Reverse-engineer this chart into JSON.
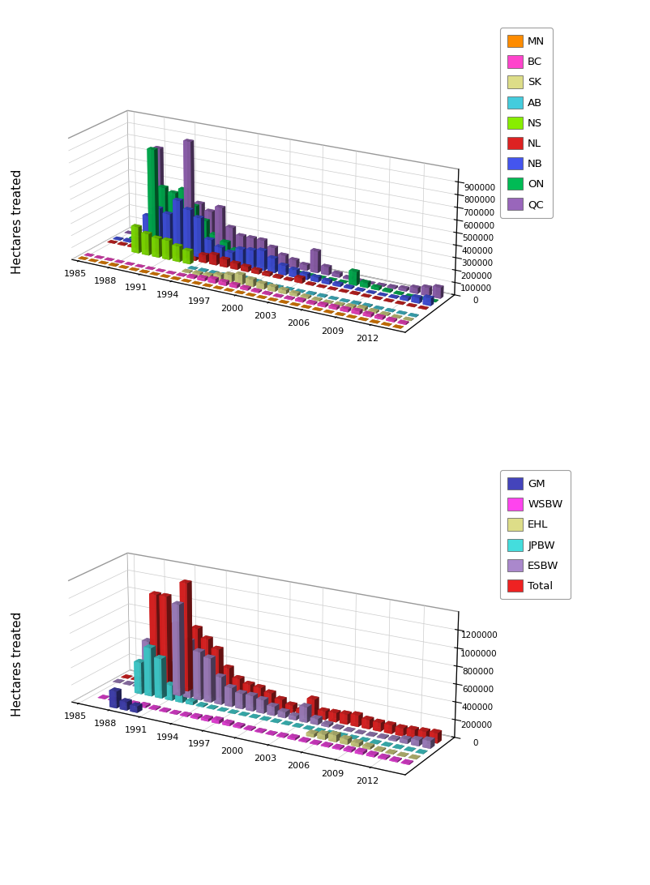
{
  "years": [
    1985,
    1986,
    1987,
    1988,
    1989,
    1990,
    1991,
    1992,
    1993,
    1994,
    1995,
    1996,
    1997,
    1998,
    1999,
    2000,
    2001,
    2002,
    2003,
    2004,
    2005,
    2006,
    2007,
    2008,
    2009,
    2010,
    2011,
    2012,
    2013,
    2014
  ],
  "chart1": {
    "ylabel": "Hectares treated",
    "ylim": [
      0,
      1000000
    ],
    "yticks": [
      0,
      100000,
      200000,
      300000,
      400000,
      500000,
      600000,
      700000,
      800000,
      900000
    ],
    "series_order": [
      "MN",
      "BC",
      "SK",
      "AB",
      "NS",
      "NL",
      "NB",
      "ON",
      "QC"
    ],
    "colors": {
      "MN": "#FF8C00",
      "BC": "#FF44CC",
      "SK": "#DDDD88",
      "AB": "#44CCDD",
      "NS": "#88EE00",
      "NL": "#DD2222",
      "NB": "#4455EE",
      "ON": "#00BB55",
      "QC": "#9966BB"
    },
    "data": {
      "MN": [
        2000,
        2000,
        2000,
        5000,
        3000,
        3000,
        3000,
        2000,
        2000,
        3000,
        2000,
        2000,
        2000,
        2000,
        2000,
        2000,
        2000,
        2000,
        2000,
        2000,
        2000,
        2000,
        2000,
        2000,
        2000,
        2000,
        2000,
        2000,
        2000,
        2000
      ],
      "BC": [
        2000,
        2000,
        2000,
        2000,
        2000,
        2000,
        2000,
        2000,
        3000,
        5000,
        15000,
        25000,
        35000,
        30000,
        25000,
        18000,
        12000,
        8000,
        5000,
        8000,
        15000,
        12000,
        18000,
        20000,
        22000,
        28000,
        22000,
        18000,
        14000,
        10000
      ],
      "SK": [
        0,
        0,
        0,
        0,
        0,
        0,
        0,
        0,
        0,
        8000,
        15000,
        20000,
        40000,
        60000,
        80000,
        60000,
        45000,
        38000,
        30000,
        22000,
        14000,
        8000,
        4000,
        8000,
        14000,
        22000,
        14000,
        8000,
        4000,
        4000
      ],
      "AB": [
        0,
        0,
        0,
        0,
        0,
        0,
        0,
        0,
        0,
        4000,
        7000,
        7000,
        7000,
        13000,
        20000,
        13000,
        7000,
        4000,
        4000,
        4000,
        7000,
        7000,
        4000,
        4000,
        7000,
        7000,
        4000,
        4000,
        4000,
        4000
      ],
      "NS": [
        0,
        0,
        0,
        220000,
        180000,
        160000,
        160000,
        130000,
        110000,
        0,
        0,
        0,
        0,
        0,
        0,
        0,
        0,
        0,
        0,
        0,
        0,
        0,
        0,
        0,
        0,
        0,
        0,
        0,
        0,
        0
      ],
      "NL": [
        4000,
        7000,
        10000,
        85000,
        65000,
        50000,
        65000,
        50000,
        42000,
        65000,
        85000,
        65000,
        50000,
        42000,
        32000,
        22000,
        14000,
        8000,
        42000,
        8000,
        4000,
        4000,
        4000,
        7000,
        4000,
        4000,
        4000,
        4000,
        4000,
        4000
      ],
      "NB": [
        7000,
        13000,
        22000,
        260000,
        340000,
        310000,
        440000,
        380000,
        330000,
        165000,
        120000,
        95000,
        140000,
        150000,
        165000,
        120000,
        78000,
        62000,
        46000,
        38000,
        28000,
        20000,
        13000,
        7000,
        4000,
        4000,
        7000,
        22000,
        46000,
        62000
      ],
      "ON": [
        0,
        4000,
        7000,
        790000,
        490000,
        460000,
        505000,
        385000,
        280000,
        180000,
        135000,
        88000,
        67000,
        46000,
        30000,
        14000,
        7000,
        4000,
        4000,
        4000,
        4000,
        4000,
        112000,
        42000,
        22000,
        13000,
        7000,
        4000,
        4000,
        4000
      ],
      "QC": [
        4000,
        7000,
        14000,
        775000,
        380000,
        325000,
        880000,
        380000,
        330000,
        380000,
        230000,
        178000,
        178000,
        178000,
        135000,
        88000,
        67000,
        46000,
        178000,
        67000,
        30000,
        13000,
        7000,
        4000,
        7000,
        13000,
        22000,
        46000,
        67000,
        88000
      ]
    }
  },
  "chart2": {
    "ylabel": "Hectares treated",
    "ylim": [
      0,
      1400000
    ],
    "yticks": [
      0,
      200000,
      400000,
      600000,
      800000,
      1000000,
      1200000
    ],
    "series_order": [
      "GM",
      "WSBW",
      "EHL",
      "JPBW",
      "ESBW",
      "Total"
    ],
    "colors": {
      "GM": "#4444BB",
      "WSBW": "#FF44EE",
      "EHL": "#DDDD88",
      "JPBW": "#44DDDD",
      "ESBW": "#AA88CC",
      "Total": "#EE2222"
    },
    "data": {
      "GM": [
        0,
        0,
        0,
        195000,
        97000,
        73000,
        0,
        0,
        0,
        0,
        0,
        0,
        0,
        0,
        0,
        0,
        0,
        0,
        0,
        0,
        0,
        0,
        0,
        0,
        0,
        0,
        0,
        0,
        0,
        0
      ],
      "WSBW": [
        0,
        4000,
        7000,
        7000,
        13000,
        22000,
        13000,
        10000,
        7000,
        13000,
        22000,
        28000,
        38000,
        28000,
        22000,
        13000,
        10000,
        7000,
        13000,
        22000,
        13000,
        10000,
        13000,
        17000,
        22000,
        28000,
        22000,
        17000,
        13000,
        10000
      ],
      "EHL": [
        0,
        0,
        0,
        0,
        0,
        0,
        0,
        0,
        0,
        0,
        0,
        0,
        0,
        0,
        0,
        0,
        0,
        0,
        0,
        0,
        38000,
        58000,
        78000,
        58000,
        42000,
        28000,
        13000,
        7000,
        4000,
        4000
      ],
      "JPBW": [
        0,
        0,
        0,
        370000,
        565000,
        465000,
        178000,
        85000,
        38000,
        13000,
        7000,
        4000,
        4000,
        4000,
        4000,
        4000,
        4000,
        4000,
        4000,
        4000,
        4000,
        4000,
        4000,
        4000,
        4000,
        4000,
        4000,
        4000,
        4000,
        4000
      ],
      "ESBW": [
        4000,
        7000,
        13000,
        565000,
        465000,
        370000,
        1065000,
        665000,
        565000,
        515000,
        320000,
        220000,
        178000,
        178000,
        155000,
        105000,
        67000,
        46000,
        178000,
        67000,
        28000,
        13000,
        7000,
        4000,
        7000,
        13000,
        22000,
        46000,
        67000,
        88000
      ],
      "Total": [
        4000,
        11000,
        20000,
        1065000,
        1065000,
        760000,
        1265000,
        760000,
        660000,
        565000,
        370000,
        270000,
        228000,
        215000,
        178000,
        128000,
        88000,
        60000,
        208000,
        97000,
        105000,
        115000,
        130000,
        105000,
        97000,
        97000,
        88000,
        97000,
        105000,
        115000
      ]
    }
  },
  "xtick_years": [
    1985,
    1988,
    1991,
    1994,
    1997,
    2000,
    2003,
    2006,
    2009,
    2012
  ]
}
